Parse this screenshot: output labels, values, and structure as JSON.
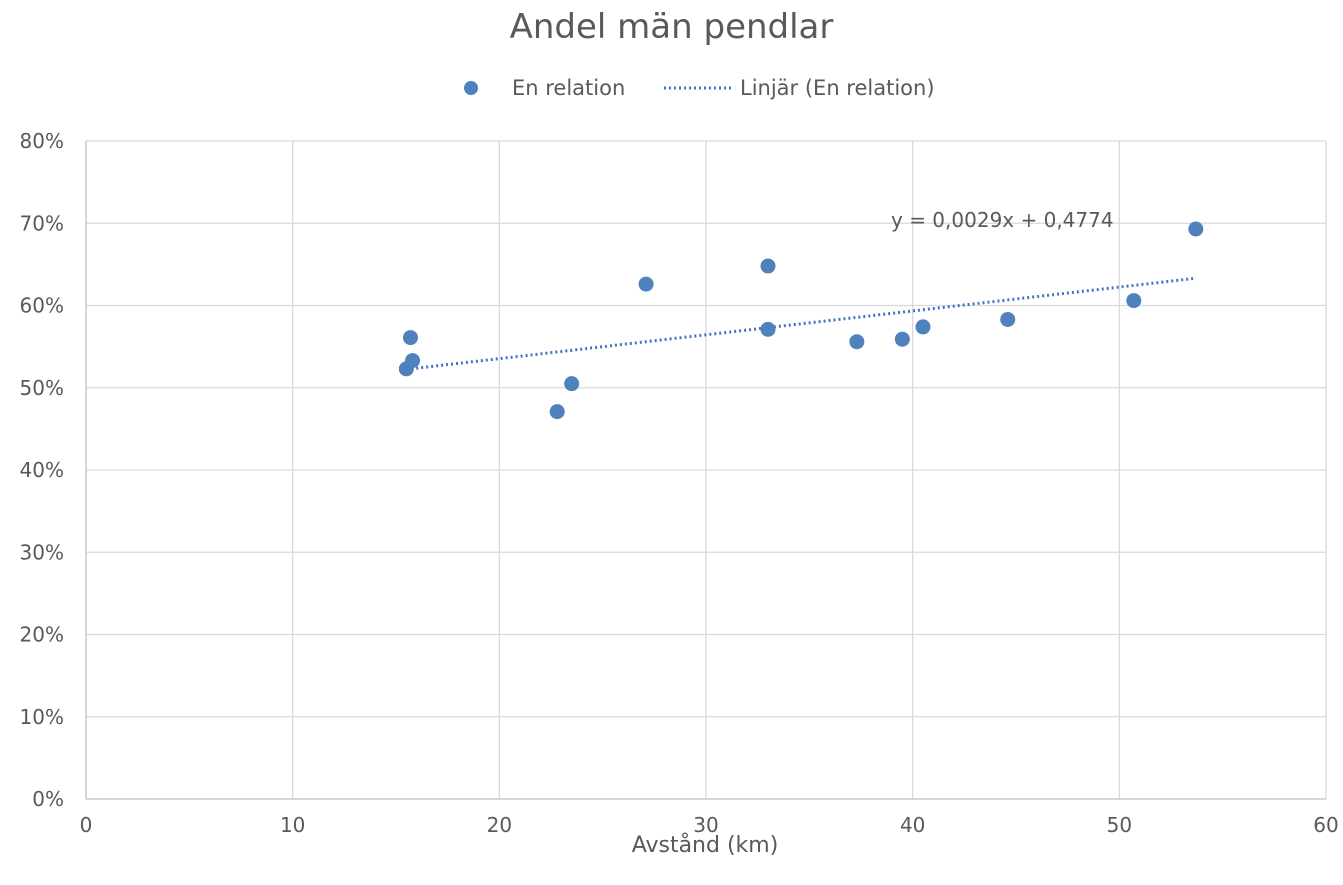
{
  "chart_data": {
    "type": "scatter",
    "title": "Andel män pendlar",
    "xlabel": "Avstånd (km)",
    "ylabel": "",
    "xlim": [
      0,
      60
    ],
    "ylim": [
      0,
      0.8
    ],
    "x_ticks": [
      0,
      10,
      20,
      30,
      40,
      50,
      60
    ],
    "x_tick_labels": [
      "0",
      "10",
      "20",
      "30",
      "40",
      "50",
      "60"
    ],
    "y_ticks": [
      0,
      0.1,
      0.2,
      0.3,
      0.4,
      0.5,
      0.6,
      0.7,
      0.8
    ],
    "y_tick_labels": [
      "0%",
      "10%",
      "20%",
      "30%",
      "40%",
      "50%",
      "60%",
      "70%",
      "80%"
    ],
    "grid": true,
    "legend_position": "top-center",
    "legend": {
      "series_label": "En relation",
      "trend_label": "Linjär (En relation)"
    },
    "series": [
      {
        "name": "En relation",
        "color": "#4f81bd",
        "x": [
          15.5,
          15.7,
          15.8,
          22.8,
          23.5,
          27.1,
          33.0,
          33.0,
          37.3,
          39.5,
          40.5,
          44.6,
          50.7,
          53.7
        ],
        "y": [
          0.523,
          0.561,
          0.533,
          0.471,
          0.505,
          0.626,
          0.648,
          0.571,
          0.556,
          0.559,
          0.574,
          0.583,
          0.606,
          0.693
        ]
      }
    ],
    "trendline": {
      "type": "linear",
      "name": "Linjär (En relation)",
      "slope": 0.0029,
      "intercept": 0.4774,
      "x_range": [
        15.5,
        53.7
      ],
      "color": "#4472c4",
      "equation_label": "y = 0,0029x + 0,4774"
    }
  }
}
